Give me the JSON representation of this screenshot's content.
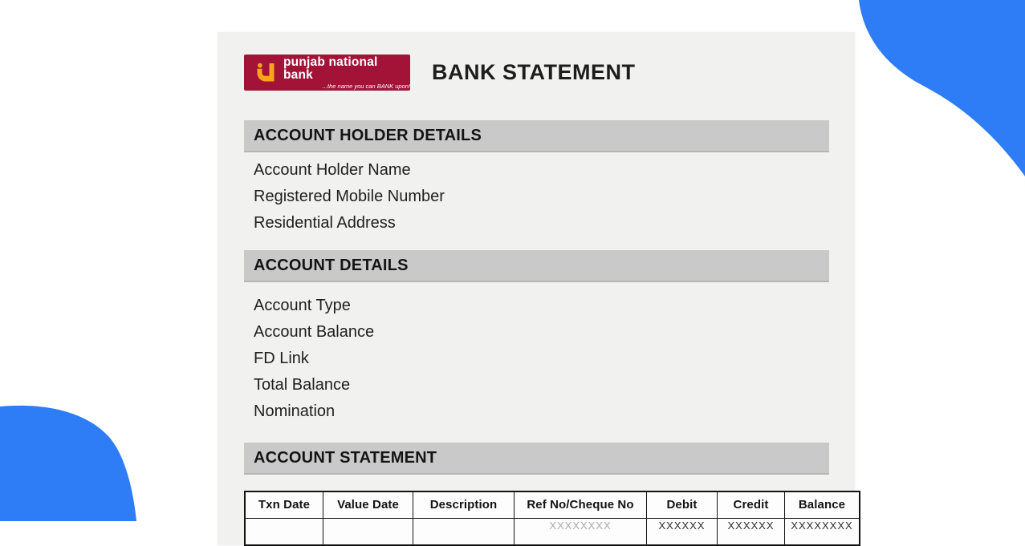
{
  "colors": {
    "page_background": "#ffffff",
    "document_background": "#f1f1ef",
    "section_bar": "#c9c9c9",
    "accent_blue": "#2e7cf6",
    "logo_maroon": "#a31338",
    "logo_yellow": "#f9a51b"
  },
  "logo": {
    "bank_name": "punjab national bank",
    "tagline": "...the name you can BANK upon!"
  },
  "header": {
    "title": "BANK STATEMENT"
  },
  "sections": [
    {
      "title": "ACCOUNT HOLDER DETAILS",
      "items": [
        "Account Holder Name",
        "Registered Mobile Number",
        "Residential Address"
      ]
    },
    {
      "title": "ACCOUNT DETAILS",
      "items": [
        "Account Type",
        "Account Balance",
        "FD Link",
        "Total Balance",
        "Nomination"
      ]
    },
    {
      "title": "ACCOUNT STATEMENT"
    }
  ],
  "statement_table": {
    "columns": [
      "Txn Date",
      "Value Date",
      "Description",
      "Ref No/Cheque No",
      "Debit",
      "Credit",
      "Balance"
    ],
    "clipped_row_values": [
      "",
      "",
      "",
      "XXXXXXXX",
      "XXXXXX",
      "XXXXXX",
      "XXXXXXXX"
    ]
  }
}
